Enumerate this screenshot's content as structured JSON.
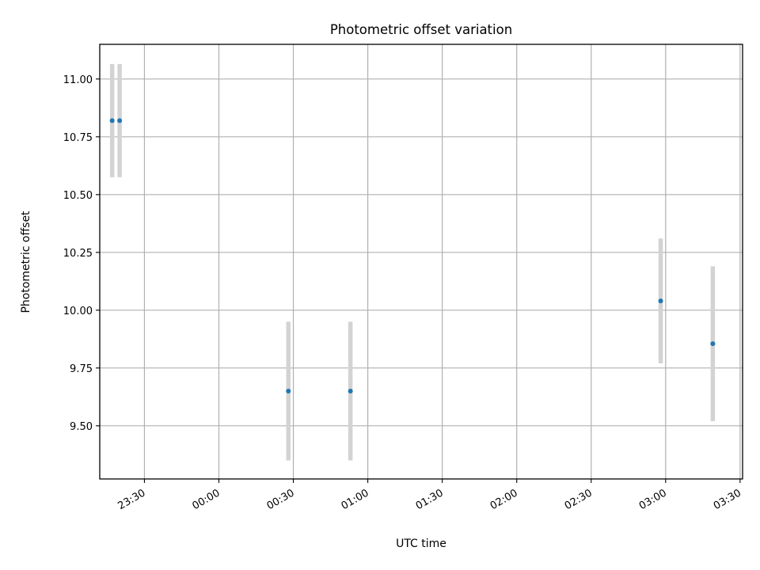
{
  "chart_data": {
    "type": "scatter",
    "title": "Photometric offset variation",
    "xlabel": "UTC time",
    "ylabel": "Photometric offset",
    "x_ticks": [
      "23:30",
      "00:00",
      "00:30",
      "01:00",
      "01:30",
      "02:00",
      "02:30",
      "03:00",
      "03:30"
    ],
    "y_ticks": [
      "9.50",
      "9.75",
      "10.00",
      "10.25",
      "10.50",
      "10.75",
      "11.00"
    ],
    "ylim": [
      9.27,
      11.15
    ],
    "xlim_time": [
      "23:12",
      "03:31"
    ],
    "grid": true,
    "legend": "none",
    "colors": {
      "points": "#1f77b4",
      "errorbars": "#d3d3d3",
      "grid": "#b0b0b0"
    },
    "points": [
      {
        "x": "23:17",
        "y": 10.82,
        "err": 0.245
      },
      {
        "x": "23:20",
        "y": 10.82,
        "err": 0.245
      },
      {
        "x": "00:28",
        "y": 9.65,
        "err": 0.3
      },
      {
        "x": "00:53",
        "y": 9.65,
        "err": 0.3
      },
      {
        "x": "02:58",
        "y": 10.04,
        "err": 0.27
      },
      {
        "x": "03:19",
        "y": 9.855,
        "err": 0.335
      }
    ]
  }
}
